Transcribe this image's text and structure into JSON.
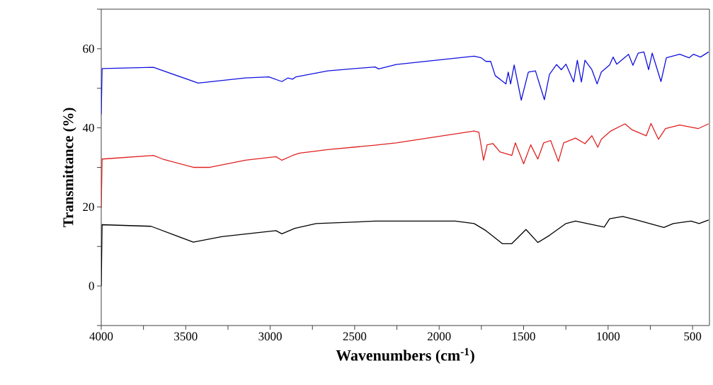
{
  "chart_data": {
    "type": "line",
    "xlabel": "Wavenumbers (cm$^{-1}$)",
    "ylabel": "Transmittance (%)",
    "xlim": [
      4000,
      400
    ],
    "ylim": [
      -10,
      70
    ],
    "xticks": [
      4000,
      {
        "value": 3750,
        "label": null
      },
      3500,
      {
        "value": 3250,
        "label": null
      },
      3000,
      {
        "value": 2750,
        "label": null
      },
      2500,
      {
        "value": 2250,
        "label": null
      },
      2000,
      {
        "value": 1750,
        "label": null
      },
      1500,
      {
        "value": 1250,
        "label": null
      },
      1000,
      {
        "value": 750,
        "label": null
      },
      500
    ],
    "yticks": [
      {
        "value": -10,
        "label": null
      },
      0,
      {
        "value": 10,
        "label": null
      },
      20,
      {
        "value": 30,
        "label": null
      },
      40,
      {
        "value": 50,
        "label": null
      },
      60,
      {
        "value": 70,
        "label": null
      }
    ],
    "line_style": "solid",
    "marker": "none",
    "series": [
      {
        "color": "#1010e0",
        "x": [
          4000,
          3995,
          3691,
          3426,
          3147,
          3008,
          2931,
          2896,
          2868,
          2847,
          2659,
          2379,
          2358,
          2254,
          1793,
          1751,
          1723,
          1695,
          1668,
          1640,
          1605,
          1591,
          1577,
          1556,
          1514,
          1472,
          1430,
          1377,
          1347,
          1305,
          1277,
          1249,
          1204,
          1182,
          1158,
          1137,
          1096,
          1065,
          1040,
          991,
          970,
          949,
          879,
          853,
          822,
          788,
          760,
          739,
          687,
          655,
          576,
          521,
          495,
          453,
          405
        ],
        "values": [
          43.4,
          55.0,
          55.3,
          51.3,
          52.6,
          52.9,
          51.7,
          52.6,
          52.3,
          52.9,
          54.4,
          55.4,
          54.9,
          56.0,
          58.1,
          57.7,
          56.8,
          56.8,
          53.2,
          52.3,
          51.1,
          54.1,
          51.1,
          55.9,
          47.0,
          54.1,
          54.4,
          47.1,
          53.5,
          56.0,
          54.7,
          56.1,
          51.6,
          57.1,
          51.6,
          57.1,
          54.7,
          51.1,
          54.1,
          55.9,
          57.9,
          56.1,
          58.6,
          55.8,
          58.9,
          59.2,
          54.7,
          58.9,
          51.7,
          57.7,
          58.6,
          57.7,
          58.6,
          57.9,
          59.2
        ]
      },
      {
        "color": "#e02020",
        "x": [
          4000,
          3995,
          3691,
          3636,
          3455,
          3357,
          3147,
          2966,
          2931,
          2868,
          2826,
          2659,
          2379,
          2254,
          1793,
          1765,
          1737,
          1716,
          1681,
          1640,
          1570,
          1549,
          1500,
          1458,
          1416,
          1381,
          1340,
          1294,
          1263,
          1193,
          1137,
          1096,
          1061,
          1040,
          984,
          900,
          858,
          774,
          746,
          702,
          660,
          576,
          467,
          405
        ],
        "values": [
          19.6,
          32.1,
          33.0,
          32.1,
          30.0,
          30.0,
          31.8,
          32.7,
          31.8,
          33.0,
          33.6,
          34.5,
          35.6,
          36.2,
          39.2,
          38.9,
          31.8,
          35.7,
          36.0,
          33.9,
          33.0,
          36.2,
          30.9,
          35.7,
          32.1,
          36.2,
          36.8,
          31.5,
          36.2,
          37.4,
          36.0,
          38.0,
          35.1,
          37.1,
          39.2,
          41.0,
          39.5,
          38.0,
          41.1,
          37.1,
          39.8,
          40.7,
          39.8,
          41.0
        ]
      },
      {
        "color": "#000000",
        "x": [
          4000,
          3995,
          3705,
          3455,
          3287,
          2966,
          2931,
          2854,
          2728,
          2379,
          2254,
          1905,
          1793,
          1723,
          1626,
          1570,
          1486,
          1416,
          1347,
          1249,
          1193,
          1023,
          991,
          914,
          830,
          670,
          614,
          509,
          461,
          405
        ],
        "values": [
          0.0,
          15.5,
          15.1,
          11.1,
          12.5,
          14.0,
          13.2,
          14.6,
          15.8,
          16.4,
          16.4,
          16.4,
          15.8,
          14.0,
          10.7,
          10.7,
          14.3,
          11.0,
          12.8,
          15.8,
          16.4,
          14.9,
          17.0,
          17.6,
          16.7,
          14.8,
          15.8,
          16.4,
          15.8,
          16.7
        ]
      }
    ]
  }
}
